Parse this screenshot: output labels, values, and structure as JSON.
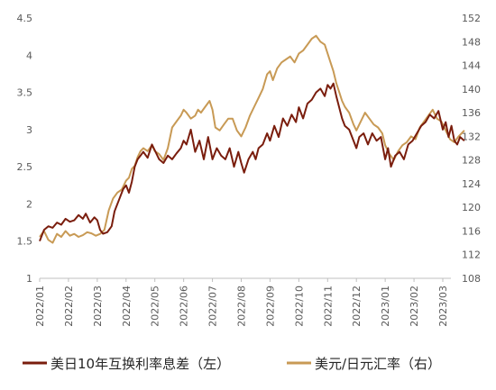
{
  "chart_data": {
    "type": "line",
    "x_categories": [
      "2022/01",
      "2022/02",
      "2022/03",
      "2022/04",
      "2022/05",
      "2022/06",
      "2022/07",
      "2022/08",
      "2022/09",
      "2022/10",
      "2022/11",
      "2022/12",
      "2023/01",
      "2023/02",
      "2023/03"
    ],
    "y_left": {
      "min": 1,
      "max": 4.5,
      "step": 0.5,
      "ticks": [
        "1",
        "1.5",
        "2",
        "2.5",
        "3",
        "3.5",
        "4",
        "4.5"
      ]
    },
    "y_right": {
      "min": 108,
      "max": 152,
      "step": 4,
      "ticks": [
        "108",
        "112",
        "116",
        "120",
        "124",
        "128",
        "132",
        "136",
        "140",
        "144",
        "148",
        "152"
      ]
    },
    "grid": false,
    "legend_position": "bottom",
    "series": [
      {
        "name": "美日10年互换利率息差（左）",
        "axis": "left",
        "color": "#7a1d0d",
        "x_month": [
          0,
          0.15,
          0.3,
          0.45,
          0.6,
          0.75,
          0.9,
          1.05,
          1.2,
          1.35,
          1.5,
          1.6,
          1.75,
          1.9,
          2.0,
          2.1,
          2.2,
          2.35,
          2.5,
          2.6,
          2.75,
          2.9,
          3.0,
          3.1,
          3.2,
          3.3,
          3.4,
          3.5,
          3.6,
          3.75,
          3.9,
          4.0,
          4.15,
          4.3,
          4.45,
          4.6,
          4.75,
          4.9,
          5.0,
          5.1,
          5.25,
          5.4,
          5.55,
          5.7,
          5.85,
          6.0,
          6.15,
          6.3,
          6.45,
          6.6,
          6.75,
          6.9,
          7.0,
          7.1,
          7.25,
          7.4,
          7.5,
          7.6,
          7.75,
          7.9,
          8.0,
          8.15,
          8.3,
          8.45,
          8.6,
          8.75,
          8.9,
          9.0,
          9.15,
          9.3,
          9.45,
          9.6,
          9.75,
          9.9,
          10.0,
          10.1,
          10.2,
          10.3,
          10.4,
          10.5,
          10.6,
          10.75,
          10.9,
          11.0,
          11.1,
          11.25,
          11.4,
          11.55,
          11.7,
          11.85,
          12.0,
          12.1,
          12.2,
          12.35,
          12.5,
          12.65,
          12.8,
          12.95,
          13.1,
          13.25,
          13.4,
          13.55,
          13.7,
          13.85,
          14.0,
          14.1,
          14.2,
          14.3,
          14.4,
          14.5,
          14.6,
          14.75
        ],
        "values": [
          1.5,
          1.65,
          1.7,
          1.68,
          1.75,
          1.72,
          1.8,
          1.76,
          1.78,
          1.85,
          1.8,
          1.87,
          1.75,
          1.82,
          1.78,
          1.65,
          1.6,
          1.62,
          1.7,
          1.9,
          2.05,
          2.2,
          2.25,
          2.15,
          2.3,
          2.5,
          2.6,
          2.65,
          2.7,
          2.62,
          2.8,
          2.72,
          2.6,
          2.55,
          2.65,
          2.6,
          2.68,
          2.75,
          2.85,
          2.8,
          3.0,
          2.7,
          2.85,
          2.6,
          2.9,
          2.6,
          2.75,
          2.65,
          2.6,
          2.75,
          2.5,
          2.7,
          2.55,
          2.42,
          2.6,
          2.7,
          2.6,
          2.75,
          2.8,
          2.95,
          2.85,
          3.05,
          2.9,
          3.15,
          3.05,
          3.2,
          3.1,
          3.3,
          3.15,
          3.35,
          3.4,
          3.5,
          3.55,
          3.45,
          3.6,
          3.55,
          3.62,
          3.45,
          3.3,
          3.15,
          3.05,
          3.0,
          2.85,
          2.75,
          2.9,
          2.95,
          2.8,
          2.95,
          2.85,
          2.9,
          2.6,
          2.75,
          2.5,
          2.65,
          2.7,
          2.6,
          2.8,
          2.85,
          2.95,
          3.05,
          3.1,
          3.2,
          3.15,
          3.25,
          3.0,
          3.1,
          2.9,
          3.05,
          2.85,
          2.8,
          2.9,
          2.85
        ]
      },
      {
        "name": "美元/日元汇率（右）",
        "axis": "right",
        "color": "#c89a55",
        "x_month": [
          0,
          0.15,
          0.3,
          0.45,
          0.6,
          0.75,
          0.9,
          1.05,
          1.2,
          1.35,
          1.5,
          1.65,
          1.8,
          1.95,
          2.1,
          2.25,
          2.4,
          2.55,
          2.7,
          2.85,
          3.0,
          3.1,
          3.2,
          3.3,
          3.4,
          3.5,
          3.6,
          3.75,
          3.9,
          4.0,
          4.15,
          4.3,
          4.45,
          4.6,
          4.75,
          4.9,
          5.0,
          5.1,
          5.25,
          5.4,
          5.5,
          5.6,
          5.75,
          5.9,
          6.0,
          6.1,
          6.25,
          6.4,
          6.55,
          6.7,
          6.85,
          7.0,
          7.15,
          7.3,
          7.45,
          7.6,
          7.75,
          7.9,
          8.0,
          8.1,
          8.25,
          8.4,
          8.55,
          8.7,
          8.85,
          9.0,
          9.15,
          9.3,
          9.45,
          9.6,
          9.75,
          9.9,
          10.0,
          10.1,
          10.2,
          10.3,
          10.4,
          10.5,
          10.6,
          10.75,
          10.9,
          11.0,
          11.15,
          11.3,
          11.45,
          11.6,
          11.75,
          11.9,
          12.0,
          12.15,
          12.3,
          12.45,
          12.6,
          12.75,
          12.9,
          13.05,
          13.2,
          13.35,
          13.5,
          13.65,
          13.8,
          13.95,
          14.1,
          14.25,
          14.4,
          14.55,
          14.75
        ],
        "values": [
          115.0,
          116.0,
          114.5,
          114.0,
          115.5,
          115.0,
          116.0,
          115.2,
          115.5,
          115.0,
          115.3,
          115.8,
          115.6,
          115.2,
          115.5,
          116.2,
          119.5,
          121.5,
          122.5,
          123.0,
          124.5,
          125.0,
          126.5,
          127.0,
          128.5,
          129.5,
          130.0,
          129.5,
          130.5,
          129.5,
          129.0,
          128.0,
          130.0,
          133.5,
          134.5,
          135.5,
          136.5,
          136.0,
          135.0,
          135.5,
          136.5,
          136.0,
          137.0,
          138.0,
          136.5,
          133.5,
          133.0,
          134.0,
          135.0,
          135.0,
          133.0,
          132.0,
          133.5,
          135.5,
          137.0,
          138.5,
          140.0,
          142.5,
          143.0,
          141.5,
          143.5,
          144.5,
          145.0,
          145.5,
          144.5,
          146.0,
          146.5,
          147.5,
          148.5,
          149.0,
          148.0,
          147.5,
          146.0,
          144.5,
          143.0,
          141.0,
          139.5,
          138.0,
          137.0,
          136.0,
          134.0,
          133.0,
          134.5,
          136.0,
          135.0,
          134.0,
          133.5,
          132.5,
          130.5,
          129.0,
          128.0,
          129.5,
          130.5,
          131.0,
          132.0,
          131.5,
          133.5,
          134.5,
          135.5,
          136.5,
          135.0,
          134.5,
          133.0,
          131.5,
          131.0,
          132.0,
          133.0
        ]
      }
    ]
  },
  "legend": {
    "items": [
      {
        "label": "美日10年互换利率息差（左）",
        "color": "#7a1d0d"
      },
      {
        "label": "美元/日元汇率（右）",
        "color": "#c89a55"
      }
    ]
  },
  "axes": {
    "color": "#bfbfbf",
    "tick_color": "#595959"
  }
}
